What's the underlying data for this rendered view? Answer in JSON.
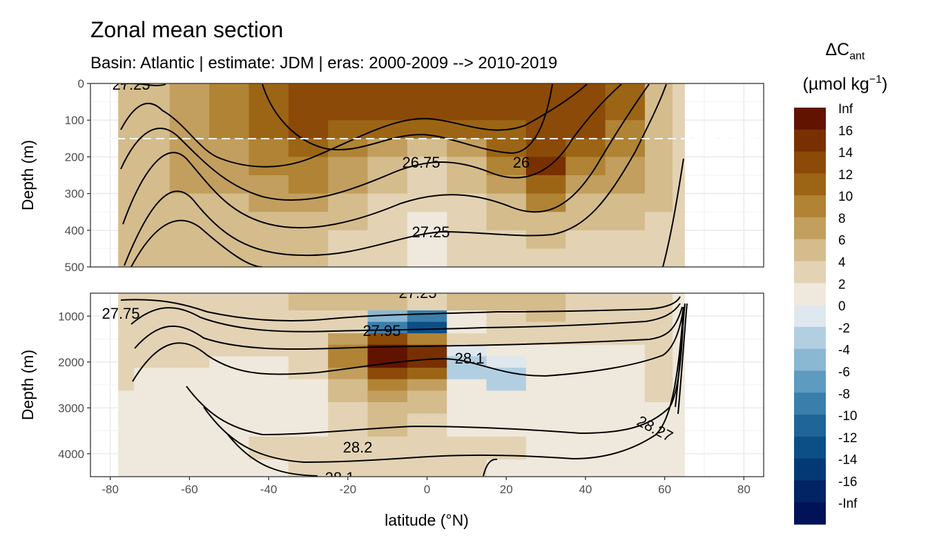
{
  "chart_data": {
    "type": "heatmap",
    "title": "Zonal mean section",
    "subtitle": "Basin: Atlantic | estimate: JDM  | eras: 2000-2009 --> 2010-2019",
    "xlabel": "latitude (°N)",
    "ylabel": "Depth (m)",
    "xlim": [
      -85,
      85
    ],
    "x_ticks": [
      -80,
      -60,
      -40,
      -20,
      0,
      20,
      40,
      60,
      80
    ],
    "x_tick_labels": [
      "-80",
      "-60",
      "-40",
      "-20",
      "0",
      "20",
      "40",
      "60",
      "80"
    ],
    "panels": [
      {
        "name": "upper",
        "ylim": [
          0,
          500
        ],
        "y_ticks": [
          0,
          100,
          200,
          300,
          400,
          500
        ],
        "y_tick_labels": [
          "0",
          "100",
          "200",
          "300",
          "400",
          "500"
        ],
        "dashed_reference_depth": 150
      },
      {
        "name": "lower",
        "ylim": [
          500,
          4500
        ],
        "y_ticks": [
          1000,
          2000,
          3000,
          4000
        ],
        "y_tick_labels": [
          "1000",
          "2000",
          "3000",
          "4000"
        ]
      }
    ],
    "legend": {
      "title_main": "ΔC",
      "title_sub": "ant",
      "units_main": "(µmol kg",
      "units_sup": "−1",
      "units_close": ")",
      "position": "right",
      "labels": [
        "Inf",
        "16",
        "14",
        "12",
        "10",
        "8",
        "6",
        "4",
        "2",
        "0",
        "-2",
        "-4",
        "-6",
        "-8",
        "-10",
        "-12",
        "-14",
        "-16",
        "-Inf"
      ],
      "colors": [
        "#611300",
        "#793000",
        "#8b4a07",
        "#9c6515",
        "#b08434",
        "#c29f5e",
        "#d4bc8c",
        "#e3d3b4",
        "#efe8dc",
        "#dee8ee",
        "#b2cfe1",
        "#8ab7d2",
        "#5e9bc0",
        "#3a7fab",
        "#1f6597",
        "#0c4e86",
        "#033a76",
        "#012465",
        "#001356"
      ]
    },
    "density_contour_labels": [
      "27.25",
      "26.75",
      "26",
      "27.25",
      "27.25",
      "27.75",
      "27.95",
      "28.1",
      "28.2",
      "28.1",
      "28.27"
    ],
    "lat_grid": [
      -78,
      -70,
      -60,
      -50,
      -40,
      -30,
      -20,
      -10,
      0,
      10,
      20,
      30,
      40,
      50,
      60,
      64
    ],
    "upper_depths": [
      25,
      75,
      125,
      175,
      225,
      275,
      325,
      375,
      425,
      475
    ],
    "upper_values": [
      [
        4,
        5,
        7,
        8,
        11,
        13,
        12,
        12,
        12,
        12,
        12,
        12,
        12,
        11,
        5,
        3
      ],
      [
        4,
        5,
        7,
        8,
        11,
        13,
        12,
        12,
        12,
        12,
        12,
        12,
        12,
        10,
        5,
        3
      ],
      [
        4,
        5,
        7,
        8,
        10,
        12,
        11,
        11,
        11,
        11,
        11,
        12,
        12,
        9,
        4,
        3
      ],
      [
        4,
        5,
        6,
        7,
        9,
        10,
        8,
        6,
        4,
        7,
        10,
        13,
        11,
        8,
        4,
        3
      ],
      [
        4,
        5,
        6,
        7,
        8,
        9,
        7,
        5,
        3,
        5,
        8,
        14,
        9,
        7,
        4,
        3
      ],
      [
        4,
        5,
        6,
        6,
        7,
        8,
        6,
        4,
        2,
        4,
        7,
        11,
        7,
        6,
        4,
        3
      ],
      [
        4,
        5,
        5,
        5,
        6,
        6,
        5,
        3,
        2,
        3,
        5,
        8,
        5,
        5,
        4,
        3
      ],
      [
        4,
        4,
        5,
        5,
        5,
        5,
        4,
        3,
        1,
        3,
        4,
        5,
        4,
        4,
        3,
        3
      ],
      [
        4,
        4,
        4,
        4,
        4,
        4,
        3,
        3,
        1,
        2,
        3,
        4,
        3,
        3,
        3,
        3
      ],
      [
        4,
        4,
        4,
        4,
        4,
        4,
        3,
        2,
        1,
        2,
        3,
        3,
        3,
        3,
        3,
        3
      ]
    ],
    "lower_depths": [
      750,
      1000,
      1250,
      1500,
      1750,
      2000,
      2250,
      2500,
      2750,
      3000,
      3250,
      3500,
      3750,
      4000,
      4250,
      4500
    ],
    "lower_values": [
      [
        3,
        3,
        3,
        3,
        3,
        4,
        5,
        4,
        3,
        4,
        4,
        4,
        3,
        3,
        2,
        1
      ],
      [
        3,
        2,
        3,
        3,
        3,
        3,
        3,
        -4,
        -8,
        1,
        3,
        4,
        3,
        2,
        2,
        1
      ],
      [
        3,
        2,
        2,
        3,
        3,
        2,
        2,
        -9,
        -12,
        1,
        3,
        3,
        2,
        2,
        2,
        1
      ],
      [
        3,
        2,
        2,
        2,
        2,
        2,
        6,
        12,
        9,
        2,
        2,
        2,
        2,
        2,
        2,
        1
      ],
      [
        3,
        2,
        2,
        2,
        2,
        2,
        9,
        16,
        14,
        -1,
        1,
        1,
        1,
        1,
        2,
        1
      ],
      [
        3,
        2,
        2,
        1,
        1,
        2,
        8,
        17,
        14,
        -2,
        -1,
        1,
        1,
        1,
        2,
        1
      ],
      [
        2,
        1,
        1,
        1,
        1,
        2,
        6,
        12,
        10,
        -3,
        -2,
        0,
        0,
        1,
        2,
        1
      ],
      [
        2,
        1,
        1,
        1,
        1,
        1,
        5,
        8,
        6,
        1,
        -2,
        0,
        0,
        1,
        2,
        1
      ],
      [
        1,
        0,
        0,
        0,
        1,
        1,
        4,
        6,
        5,
        1,
        0,
        0,
        0,
        1,
        2,
        1
      ],
      [
        1,
        0,
        0,
        0,
        0,
        1,
        3,
        5,
        4,
        1,
        0,
        0,
        0,
        0,
        1,
        1
      ],
      [
        1,
        0,
        0,
        0,
        0,
        1,
        3,
        4,
        3,
        1,
        0,
        0,
        0,
        0,
        1,
        1
      ],
      [
        1,
        0,
        0,
        1,
        1,
        1,
        3,
        4,
        3,
        1,
        1,
        0,
        0,
        0,
        1,
        1
      ],
      [
        1,
        0,
        0,
        1,
        2,
        2,
        3,
        3,
        2,
        2,
        2,
        1,
        0,
        0,
        1,
        1
      ],
      [
        1,
        0,
        0,
        1,
        2,
        2,
        2,
        2,
        2,
        2,
        2,
        1,
        0,
        0,
        1,
        1
      ],
      [
        1,
        0,
        0,
        0,
        1,
        2,
        2,
        2,
        2,
        2,
        1,
        0,
        0,
        0,
        1,
        1
      ],
      [
        1,
        0,
        0,
        0,
        1,
        2,
        2,
        2,
        2,
        2,
        1,
        0,
        0,
        0,
        1,
        1
      ]
    ]
  }
}
